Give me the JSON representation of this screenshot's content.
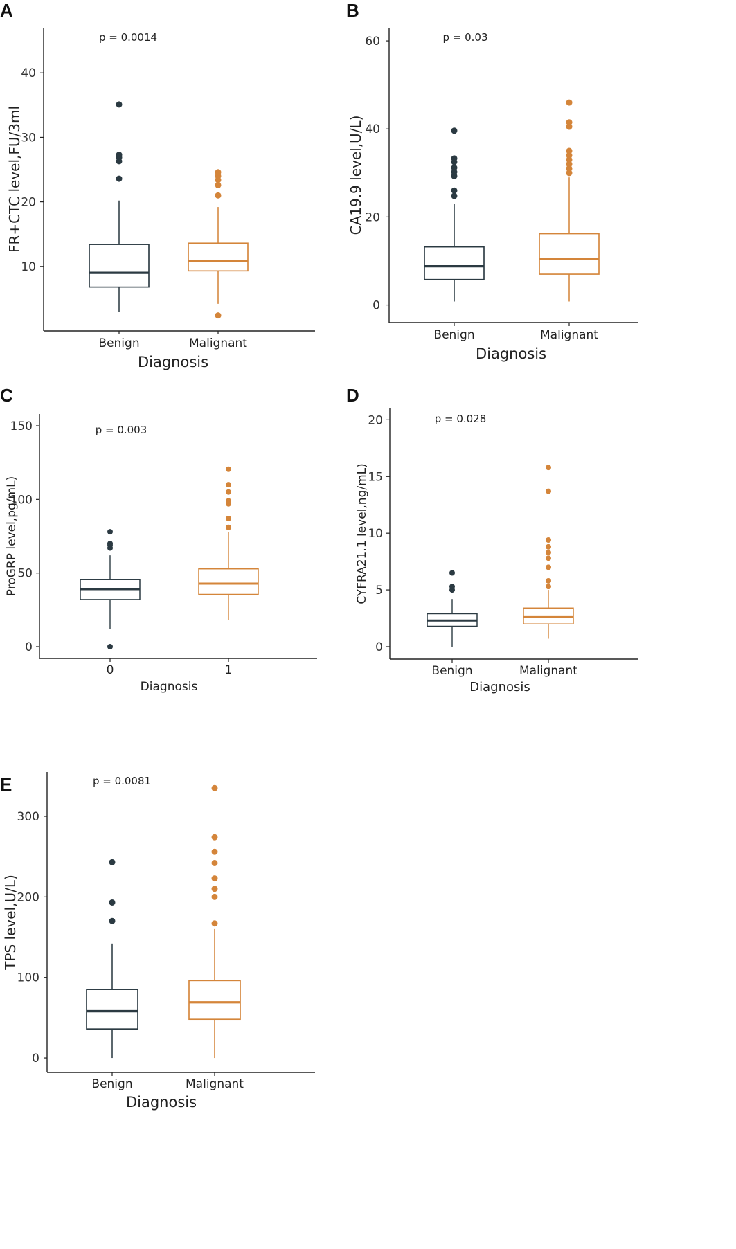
{
  "colors": {
    "benign": "#2b3a42",
    "malignant": "#d4853a",
    "axis": "#222222"
  },
  "chart_data": [
    {
      "id": "A",
      "type": "box",
      "panel_label": "A",
      "ylabel": "FR+CTC level,FU/3ml",
      "xlabel": "Diagnosis",
      "annotation": "p = 0.0014",
      "ylim": [
        0,
        47
      ],
      "yticks": [
        10,
        20,
        30,
        40
      ],
      "categories": [
        "Benign",
        "Malignant"
      ],
      "boxes": [
        {
          "name": "Benign",
          "whisker_low": 3.0,
          "q1": 6.8,
          "median": 9.0,
          "q3": 13.4,
          "whisker_high": 20.2,
          "outliers": [
            23.6,
            26.3,
            26.9,
            27.3,
            35.1
          ]
        },
        {
          "name": "Malignant",
          "whisker_low": 4.2,
          "q1": 9.3,
          "median": 10.8,
          "q3": 13.6,
          "whisker_high": 19.2,
          "outliers": [
            2.4,
            21.0,
            22.6,
            23.4,
            24.0,
            24.6
          ]
        }
      ]
    },
    {
      "id": "B",
      "type": "box",
      "panel_label": "B",
      "ylabel": "CA19.9 level,U/L)",
      "xlabel": "Diagnosis",
      "annotation": "p = 0.03",
      "ylim": [
        -4,
        63
      ],
      "yticks": [
        0,
        20,
        40,
        60
      ],
      "categories": [
        "Benign",
        "Malignant"
      ],
      "boxes": [
        {
          "name": "Benign",
          "whisker_low": 0.8,
          "q1": 5.8,
          "median": 8.8,
          "q3": 13.2,
          "whisker_high": 23.0,
          "outliers": [
            24.8,
            26.0,
            29.3,
            30.2,
            31.2,
            32.5,
            33.3,
            39.6
          ]
        },
        {
          "name": "Malignant",
          "whisker_low": 0.8,
          "q1": 7.0,
          "median": 10.5,
          "q3": 16.2,
          "whisker_high": 29.0,
          "outliers": [
            30.0,
            31.0,
            32.0,
            33.0,
            34.0,
            35.0,
            40.5,
            41.5,
            46.0
          ]
        }
      ]
    },
    {
      "id": "C",
      "type": "box",
      "panel_label": "C",
      "ylabel": "ProGRP level,pg/mL)",
      "xlabel": "Diagnosis",
      "annotation": "p = 0.003",
      "ylim": [
        -8,
        158
      ],
      "yticks": [
        0,
        50,
        100,
        150
      ],
      "categories": [
        "0",
        "1"
      ],
      "boxes": [
        {
          "name": "0",
          "whisker_low": 12.0,
          "q1": 32.0,
          "median": 39.0,
          "q3": 45.5,
          "whisker_high": 62.0,
          "outliers": [
            0.0,
            67.0,
            69.0,
            70.0,
            78.0
          ]
        },
        {
          "name": "1",
          "whisker_low": 18.0,
          "q1": 35.5,
          "median": 42.8,
          "q3": 52.8,
          "whisker_high": 78.0,
          "outliers": [
            81.0,
            87.0,
            97.0,
            99.0,
            105.0,
            110.0,
            120.5
          ]
        }
      ]
    },
    {
      "id": "D",
      "type": "box",
      "panel_label": "D",
      "ylabel": "CYFRA21.1 level,ng/mL)",
      "xlabel": "Diagnosis",
      "annotation": "p = 0.028",
      "ylim": [
        -1.1,
        21
      ],
      "yticks": [
        0,
        5,
        10,
        15,
        20
      ],
      "categories": [
        "Benign",
        "Malignant"
      ],
      "boxes": [
        {
          "name": "Benign",
          "whisker_low": 0.0,
          "q1": 1.8,
          "median": 2.3,
          "q3": 2.9,
          "whisker_high": 4.2,
          "outliers": [
            5.0,
            5.3,
            6.5
          ]
        },
        {
          "name": "Malignant",
          "whisker_low": 0.7,
          "q1": 2.0,
          "median": 2.6,
          "q3": 3.4,
          "whisker_high": 5.0,
          "outliers": [
            5.3,
            5.8,
            7.0,
            7.8,
            8.3,
            8.8,
            9.4,
            13.7,
            15.8
          ]
        }
      ]
    },
    {
      "id": "E",
      "type": "box",
      "panel_label": "E",
      "ylabel": "TPS level,U/L)",
      "xlabel": "Diagnosis",
      "annotation": "p = 0.0081",
      "ylim": [
        -18,
        355
      ],
      "yticks": [
        0,
        100,
        200,
        300
      ],
      "categories": [
        "Benign",
        "Malignant"
      ],
      "boxes": [
        {
          "name": "Benign",
          "whisker_low": 0.0,
          "q1": 36.0,
          "median": 58.0,
          "q3": 85.0,
          "whisker_high": 142.0,
          "outliers": [
            170.0,
            193.0,
            243.0
          ]
        },
        {
          "name": "Malignant",
          "whisker_low": 0.0,
          "q1": 48.0,
          "median": 69.0,
          "q3": 96.0,
          "whisker_high": 160.0,
          "outliers": [
            167.0,
            200.0,
            210.0,
            223.0,
            242.0,
            256.0,
            274.0,
            335.0
          ]
        }
      ]
    }
  ]
}
